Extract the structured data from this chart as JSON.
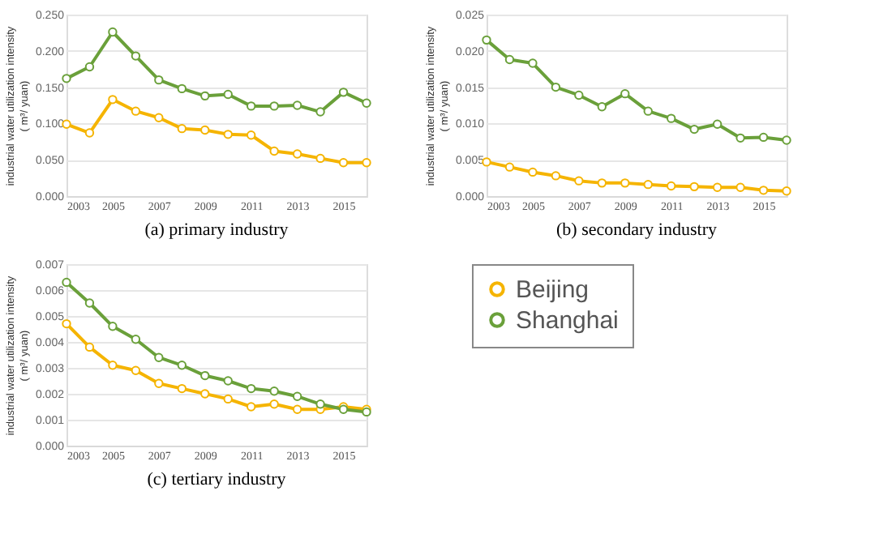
{
  "chart_data": [
    {
      "type": "line",
      "title": "(a) primary industry",
      "ylabel": "industrial water utilization intensity\n( m³/ yuan)",
      "x": [
        2003,
        2004,
        2005,
        2006,
        2007,
        2008,
        2009,
        2010,
        2011,
        2012,
        2013,
        2014,
        2015,
        2016
      ],
      "xlim": [
        2003,
        2016
      ],
      "xticks": [
        2003,
        2005,
        2007,
        2009,
        2011,
        2013,
        2015
      ],
      "ylim": [
        0,
        0.25
      ],
      "yticks": [
        {
          "value": 0,
          "label": "0.000"
        },
        {
          "value": 0.05,
          "label": "0.050"
        },
        {
          "value": 0.1,
          "label": "0.100"
        },
        {
          "value": 0.15,
          "label": "0.150"
        },
        {
          "value": 0.2,
          "label": "0.200"
        },
        {
          "value": 0.25,
          "label": "0.250"
        }
      ],
      "grid": "y",
      "marker": "circle",
      "line_style": "solid",
      "series": [
        {
          "color": "#f5b400",
          "values": [
            0.099,
            0.087,
            0.133,
            0.117,
            0.108,
            0.093,
            0.091,
            0.085,
            0.084,
            0.062,
            0.058,
            0.052,
            0.046,
            0.046
          ]
        },
        {
          "color": "#6aa03a",
          "values": [
            0.162,
            0.178,
            0.226,
            0.193,
            0.16,
            0.148,
            0.138,
            0.14,
            0.124,
            0.124,
            0.125,
            0.116,
            0.143,
            0.128
          ]
        }
      ]
    },
    {
      "type": "line",
      "title": "(b) secondary industry",
      "ylabel": "industrial water utilization intensity\n( m³/ yuan)",
      "x": [
        2003,
        2004,
        2005,
        2006,
        2007,
        2008,
        2009,
        2010,
        2011,
        2012,
        2013,
        2014,
        2015,
        2016
      ],
      "xlim": [
        2003,
        2016
      ],
      "xticks": [
        2003,
        2005,
        2007,
        2009,
        2011,
        2013,
        2015
      ],
      "ylim": [
        0,
        0.025
      ],
      "yticks": [
        {
          "value": 0,
          "label": "0.000"
        },
        {
          "value": 0.005,
          "label": "0.005"
        },
        {
          "value": 0.01,
          "label": "0.010"
        },
        {
          "value": 0.015,
          "label": "0.015"
        },
        {
          "value": 0.02,
          "label": "0.020"
        },
        {
          "value": 0.025,
          "label": "0.025"
        }
      ],
      "grid": "y",
      "marker": "circle",
      "line_style": "solid",
      "series": [
        {
          "color": "#f5b400",
          "values": [
            0.0047,
            0.004,
            0.0033,
            0.0028,
            0.0021,
            0.0018,
            0.0018,
            0.0016,
            0.0014,
            0.0013,
            0.0012,
            0.0012,
            0.0008,
            0.0007
          ]
        },
        {
          "color": "#6aa03a",
          "values": [
            0.0215,
            0.0188,
            0.0183,
            0.015,
            0.0139,
            0.0123,
            0.0141,
            0.0117,
            0.0107,
            0.0092,
            0.0099,
            0.008,
            0.0081,
            0.0077
          ]
        }
      ]
    },
    {
      "type": "line",
      "title": "(c) tertiary industry",
      "ylabel": "industrial water utilization intensity\n( m³/ yuan)",
      "x": [
        2003,
        2004,
        2005,
        2006,
        2007,
        2008,
        2009,
        2010,
        2011,
        2012,
        2013,
        2014,
        2015,
        2016
      ],
      "xlim": [
        2003,
        2016
      ],
      "xticks": [
        2003,
        2005,
        2007,
        2009,
        2011,
        2013,
        2015
      ],
      "ylim": [
        0,
        0.007
      ],
      "yticks": [
        {
          "value": 0,
          "label": "0.000"
        },
        {
          "value": 0.001,
          "label": "0.001"
        },
        {
          "value": 0.002,
          "label": "0.002"
        },
        {
          "value": 0.003,
          "label": "0.003"
        },
        {
          "value": 0.004,
          "label": "0.004"
        },
        {
          "value": 0.005,
          "label": "0.005"
        },
        {
          "value": 0.006,
          "label": "0.006"
        },
        {
          "value": 0.007,
          "label": "0.007"
        }
      ],
      "grid": "y",
      "marker": "circle",
      "line_style": "solid",
      "legend": "right",
      "series": [
        {
          "name": "Beijing",
          "color": "#f5b400",
          "values": [
            0.0047,
            0.0038,
            0.0031,
            0.0029,
            0.0024,
            0.0022,
            0.002,
            0.0018,
            0.0015,
            0.0016,
            0.0014,
            0.0014,
            0.0015,
            0.0014
          ]
        },
        {
          "name": "Shanghai",
          "color": "#6aa03a",
          "values": [
            0.0063,
            0.0055,
            0.0046,
            0.0041,
            0.0034,
            0.0031,
            0.0027,
            0.0025,
            0.0022,
            0.0021,
            0.0019,
            0.0016,
            0.0014,
            0.0013
          ]
        }
      ]
    }
  ]
}
